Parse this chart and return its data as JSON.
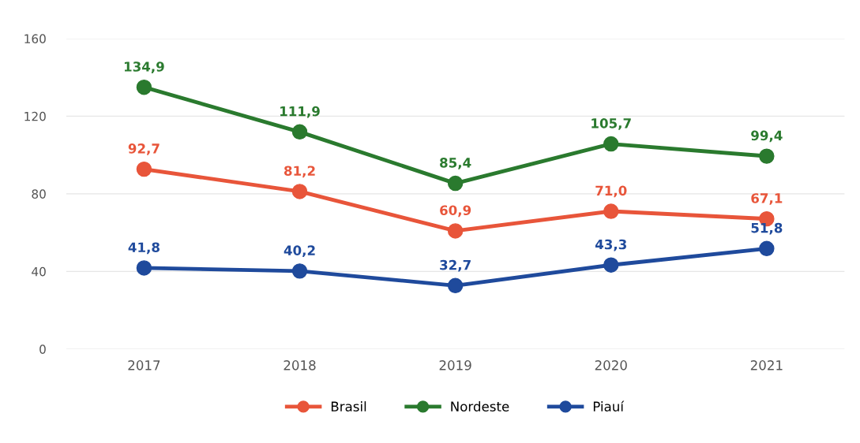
{
  "chart_data": {
    "type": "line",
    "categories": [
      "2017",
      "2018",
      "2019",
      "2020",
      "2021"
    ],
    "series": [
      {
        "name": "Brasil",
        "color": "#e8553a",
        "values": [
          92.7,
          81.2,
          60.9,
          71.0,
          67.1
        ],
        "value_labels": [
          "92,7",
          "81,2",
          "60,9",
          "71,0",
          "67,1"
        ]
      },
      {
        "name": "Nordeste",
        "color": "#2a7a2e",
        "values": [
          134.9,
          111.9,
          85.4,
          105.7,
          99.4
        ],
        "value_labels": [
          "134,9",
          "111,9",
          "85,4",
          "105,7",
          "99,4"
        ]
      },
      {
        "name": "Piauí",
        "color": "#1f4a9c",
        "values": [
          41.8,
          40.2,
          32.7,
          43.3,
          51.8
        ],
        "value_labels": [
          "41,8",
          "40,2",
          "32,7",
          "43,3",
          "51,8"
        ]
      }
    ],
    "ylim": [
      0,
      160
    ],
    "yticks": [
      0,
      40,
      80,
      120,
      160
    ],
    "grid": "y",
    "legend": "bottom",
    "marker": "circle",
    "line_style": "solid"
  }
}
